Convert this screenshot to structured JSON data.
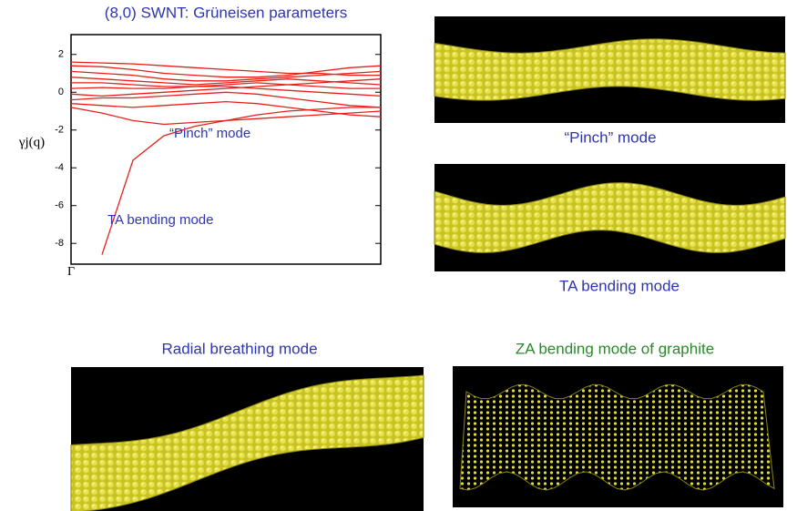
{
  "chart_data": {
    "type": "line",
    "title": "(8,0) SWNT: Grüneisen parameters",
    "y_label": "γj(q)",
    "annotations": [
      "“Pinch” mode",
      "TA bending mode"
    ],
    "x": [
      0,
      0.1,
      0.2,
      0.3,
      0.4,
      0.5,
      0.6,
      0.7,
      0.8,
      0.9,
      1
    ],
    "xlim": [
      0,
      1
    ],
    "xticks": [
      {
        "value": 0,
        "label": "Γ"
      }
    ],
    "ylim": [
      -9.1,
      3.05
    ],
    "yticks": [
      2,
      0,
      -2,
      -4,
      -6,
      -8
    ],
    "series": [
      {
        "color": "#e8201a",
        "values": [
          1.6,
          1.55,
          1.5,
          1.4,
          1.3,
          1.2,
          1.1,
          1.0,
          1.0,
          0.9,
          0.9
        ]
      },
      {
        "color": "#e8201a",
        "values": [
          1.4,
          1.35,
          1.2,
          1.0,
          0.9,
          0.8,
          0.8,
          0.9,
          1.1,
          1.3,
          1.4
        ]
      },
      {
        "color": "#e8201a",
        "values": [
          1.1,
          1.0,
          0.9,
          0.7,
          0.6,
          0.6,
          0.7,
          0.8,
          0.9,
          1.0,
          1.1
        ]
      },
      {
        "color": "#e8201a",
        "values": [
          0.8,
          0.7,
          0.6,
          0.5,
          0.4,
          0.5,
          0.6,
          0.7,
          0.6,
          0.5,
          0.4
        ]
      },
      {
        "color": "#e8201a",
        "values": [
          0.5,
          0.5,
          0.4,
          0.3,
          0.3,
          0.4,
          0.5,
          0.4,
          0.3,
          0.2,
          0.2
        ]
      },
      {
        "color": "#e8201a",
        "values": [
          0.2,
          0.25,
          0.2,
          0.2,
          0.3,
          0.3,
          0.2,
          0.1,
          0.0,
          -0.1,
          -0.2
        ]
      },
      {
        "color": "#e8201a",
        "values": [
          -0.1,
          -0.2,
          -0.1,
          0.0,
          0.1,
          0.2,
          0.3,
          0.4,
          0.5,
          0.6,
          0.7
        ]
      },
      {
        "color": "#e8201a",
        "values": [
          -0.4,
          -0.3,
          -0.3,
          -0.2,
          -0.1,
          0.0,
          -0.1,
          -0.3,
          -0.5,
          -0.7,
          -0.8
        ]
      },
      {
        "color": "#e8201a",
        "values": [
          -0.6,
          -0.7,
          -0.8,
          -0.7,
          -0.6,
          -0.5,
          -0.6,
          -0.8,
          -1.0,
          -1.2,
          -1.3
        ]
      },
      {
        "color": "#e8201a",
        "values": [
          -0.8,
          -1.1,
          -1.5,
          -1.7,
          -1.6,
          -1.5,
          -1.4,
          -1.3,
          -1.2,
          -1.1,
          -1.0
        ]
      },
      {
        "color": "#e8201a",
        "values": [
          null,
          -8.6,
          -3.6,
          -2.3,
          -1.8,
          -1.5,
          -1.2,
          -1.0,
          -0.9,
          -0.8,
          -0.8
        ]
      }
    ]
  },
  "panels": [
    {
      "caption": "“Pinch” mode"
    },
    {
      "caption": "TA bending mode"
    },
    {
      "caption": "Radial breathing mode"
    },
    {
      "caption": "ZA bending mode of graphite"
    }
  ]
}
